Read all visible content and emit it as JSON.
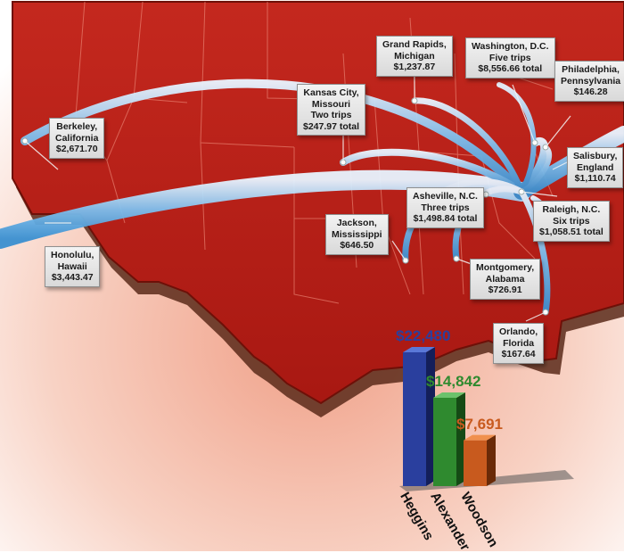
{
  "locations": [
    {
      "id": "berkeley",
      "lines": [
        "Berkeley,",
        "California",
        "$2,671.70"
      ]
    },
    {
      "id": "honolulu",
      "lines": [
        "Honolulu,",
        "Hawaii",
        "$3,443.47"
      ]
    },
    {
      "id": "grand_rapids",
      "lines": [
        "Grand Rapids,",
        "Michigan",
        "$1,237.87"
      ]
    },
    {
      "id": "kansas_city",
      "lines": [
        "Kansas City,",
        "Missouri",
        "Two trips",
        "$247.97 total"
      ]
    },
    {
      "id": "washington",
      "lines": [
        "Washington, D.C.",
        "Five trips",
        "$8,556.66 total"
      ]
    },
    {
      "id": "philadelphia",
      "lines": [
        "Philadelphia,",
        "Pennsylvania",
        "$146.28"
      ]
    },
    {
      "id": "salisbury",
      "lines": [
        "Salisbury,",
        "England",
        "$1,110.74"
      ]
    },
    {
      "id": "asheville",
      "lines": [
        "Asheville, N.C.",
        "Three trips",
        "$1,498.84 total"
      ]
    },
    {
      "id": "raleigh",
      "lines": [
        "Raleigh, N.C.",
        "Six trips",
        "$1,058.51 total"
      ]
    },
    {
      "id": "jackson",
      "lines": [
        "Jackson,",
        "Mississippi",
        "$646.50"
      ]
    },
    {
      "id": "montgomery",
      "lines": [
        "Montgomery,",
        "Alabama",
        "$726.91"
      ]
    },
    {
      "id": "orlando",
      "lines": [
        "Orlando,",
        "Florida",
        "$167.64"
      ]
    }
  ],
  "chart_data": {
    "type": "bar",
    "categories": [
      "Heggins",
      "Alexander",
      "Woodson"
    ],
    "values": [
      22480,
      14842,
      7691
    ],
    "value_labels": [
      "$22,480",
      "$14,842",
      "$7,691"
    ],
    "colors": [
      "#2a3f9e",
      "#2f8a2f",
      "#c85a1e"
    ]
  }
}
